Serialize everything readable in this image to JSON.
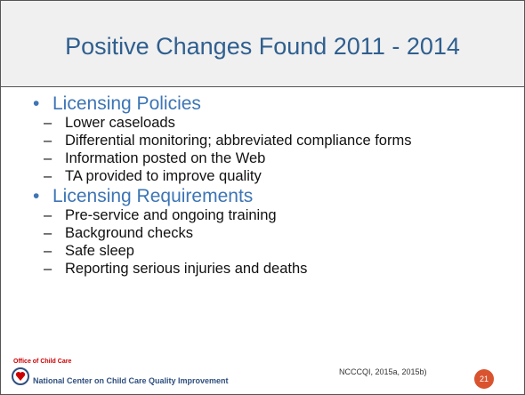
{
  "title": "Positive Changes Found 2011 - 2014",
  "sections": [
    {
      "heading": "Licensing Policies",
      "items": [
        "Lower caseloads",
        "Differential monitoring; abbreviated compliance forms",
        "Information posted on the Web",
        "TA provided to improve quality"
      ]
    },
    {
      "heading": "Licensing Requirements",
      "items": [
        "Pre-service and ongoing training",
        "Background checks",
        "Safe sleep",
        "Reporting serious injuries and deaths"
      ]
    }
  ],
  "footer": {
    "logo_top": "Office of Child Care",
    "logo_name": "National Center on Child Care Quality Improvement",
    "citation": "NCCCQI, 2015a, 2015b)",
    "page": "21"
  }
}
